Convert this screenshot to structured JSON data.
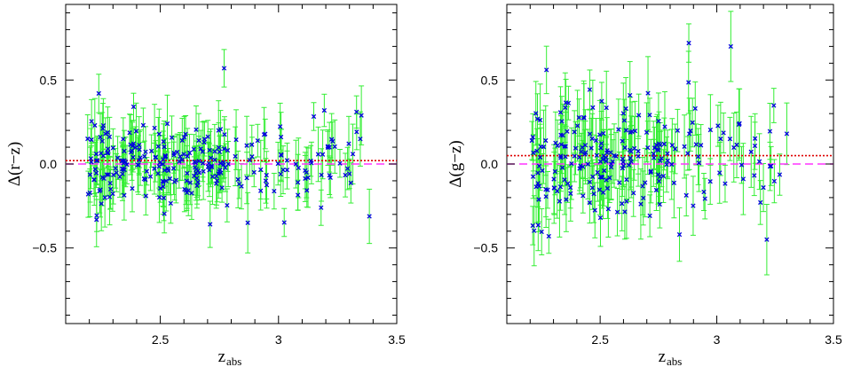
{
  "chart_data": [
    {
      "type": "scatter",
      "title": "",
      "xlabel": "z",
      "xlabel_sub": "abs",
      "ylabel": "Δ(r−z)",
      "xlim": [
        2.1,
        3.5
      ],
      "ylim": [
        -0.95,
        0.95
      ],
      "xticks": [
        {
          "v": 2.5,
          "label": "2.5"
        },
        {
          "v": 3,
          "label": "3"
        },
        {
          "v": 3.5,
          "label": "3.5"
        }
      ],
      "yticks": [
        {
          "v": 0.5,
          "label": "0.5"
        },
        {
          "v": 0.0,
          "label": "0.0"
        },
        {
          "v": -0.5,
          "label": "−0.5"
        }
      ],
      "ref_lines": [
        {
          "y": 0.0,
          "style": "dashed",
          "color": "#ff33ff"
        },
        {
          "y": 0.02,
          "style": "dotted",
          "color": "#dd0000"
        }
      ],
      "colors": {
        "marker": "#0000dd",
        "errorbar": "#33ee33"
      },
      "seed": 17,
      "n_points": 260,
      "x_range_data": [
        2.19,
        3.4
      ],
      "note_x_points": [
        [
          2.24,
          0.42
        ],
        [
          2.77,
          0.57
        ],
        [
          2.87,
          -0.35
        ],
        [
          3.18,
          -0.26
        ],
        [
          3.33,
          0.31
        ]
      ],
      "center": 0.0,
      "spread": 0.12,
      "err_range": [
        0.08,
        0.18
      ]
    },
    {
      "type": "scatter",
      "title": "",
      "xlabel": "z",
      "xlabel_sub": "abs",
      "ylabel": "Δ(g−z)",
      "xlim": [
        2.1,
        3.5
      ],
      "ylim": [
        -0.95,
        0.95
      ],
      "xticks": [
        {
          "v": 2.5,
          "label": "2.5"
        },
        {
          "v": 3,
          "label": "3"
        },
        {
          "v": 3.5,
          "label": "3.5"
        }
      ],
      "yticks": [
        {
          "v": 0.5,
          "label": "0.5"
        },
        {
          "v": 0.0,
          "label": "0.0"
        },
        {
          "v": -0.5,
          "label": "−0.5"
        }
      ],
      "ref_lines": [
        {
          "y": 0.0,
          "style": "dashed",
          "color": "#ff33ff"
        },
        {
          "y": 0.05,
          "style": "dotted",
          "color": "#dd0000"
        }
      ],
      "colors": {
        "marker": "#0000dd",
        "errorbar": "#33ee33"
      },
      "seed": 41,
      "n_points": 230,
      "x_range_data": [
        2.19,
        3.3
      ],
      "note_x_points": [
        [
          2.88,
          0.72
        ],
        [
          3.06,
          0.7
        ],
        [
          2.27,
          0.56
        ],
        [
          2.28,
          -0.43
        ],
        [
          2.84,
          -0.42
        ],
        [
          3.3,
          0.18
        ]
      ],
      "center": 0.03,
      "spread": 0.17,
      "err_range": [
        0.1,
        0.22
      ]
    }
  ]
}
